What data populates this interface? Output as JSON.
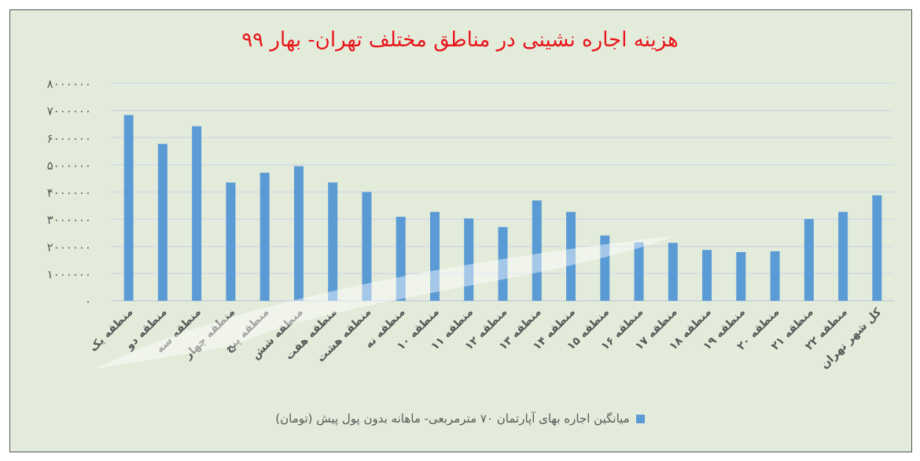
{
  "chart_data": {
    "type": "bar",
    "title": "هزینه اجاره نشینی در مناطق مختلف تهران- بهار ۹۹",
    "xlabel": "",
    "ylabel": "",
    "ylim": [
      0,
      8000000
    ],
    "yticks": [
      0,
      1000000,
      2000000,
      3000000,
      4000000,
      5000000,
      6000000,
      7000000,
      8000000
    ],
    "ytick_labels": [
      "۰",
      "۱۰۰۰۰۰۰",
      "۲۰۰۰۰۰۰",
      "۳۰۰۰۰۰۰",
      "۴۰۰۰۰۰۰",
      "۵۰۰۰۰۰۰",
      "۶۰۰۰۰۰۰",
      "۷۰۰۰۰۰۰",
      "۸۰۰۰۰۰۰"
    ],
    "grid": true,
    "legend_position": "bottom",
    "categories": [
      "منطقه یک",
      "منطقه دو",
      "منطقه سه",
      "منطقه چهار",
      "منطقه پنج",
      "منطقه شش",
      "منطقه هفت",
      "منطقه هشت",
      "منطقه نه",
      "منطقه ۱۰",
      "منطقه ۱۱",
      "منطقه ۱۲",
      "منطقه ۱۳",
      "منطقه ۱۴",
      "منطقه ۱۵",
      "منطقه ۱۶",
      "منطقه ۱۷",
      "منطقه ۱۸",
      "منطقه ۱۹",
      "منطقه ۲۰",
      "منطقه ۲۱",
      "منطقه ۲۲",
      "کل شهر تهران"
    ],
    "series": [
      {
        "name": "میانگین اجاره بهای آپارتمان ۷۰ مترمربعی- ماهانه بدون پول پیش (تومان)",
        "color": "#5b9bd5",
        "values": [
          6830000,
          5770000,
          6420000,
          4350000,
          4710000,
          4950000,
          4350000,
          4000000,
          3090000,
          3270000,
          3030000,
          2710000,
          3690000,
          3270000,
          2400000,
          2150000,
          2130000,
          1870000,
          1790000,
          1820000,
          3010000,
          3270000,
          3880000
        ]
      }
    ]
  }
}
